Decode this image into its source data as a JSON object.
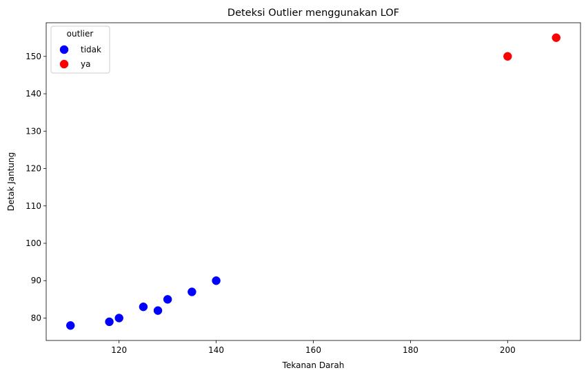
{
  "chart_data": {
    "type": "scatter",
    "title": "Deteksi Outlier menggunakan LOF",
    "xlabel": "Tekanan Darah",
    "ylabel": "Detak Jantung",
    "xlim": [
      105,
      215
    ],
    "ylim": [
      74,
      159
    ],
    "x_ticks": [
      120,
      140,
      160,
      180,
      200
    ],
    "y_ticks": [
      80,
      90,
      100,
      110,
      120,
      130,
      140,
      150
    ],
    "grid": false,
    "legend": {
      "title": "outlier",
      "position": "top-left",
      "entries": [
        {
          "label": "tidak",
          "color": "#0000ff"
        },
        {
          "label": "ya",
          "color": "#ff0000"
        }
      ]
    },
    "series": [
      {
        "name": "tidak",
        "color": "#0000ff",
        "points": [
          {
            "x": 110,
            "y": 78
          },
          {
            "x": 118,
            "y": 79
          },
          {
            "x": 120,
            "y": 80
          },
          {
            "x": 125,
            "y": 83
          },
          {
            "x": 128,
            "y": 82
          },
          {
            "x": 130,
            "y": 85
          },
          {
            "x": 135,
            "y": 87
          },
          {
            "x": 140,
            "y": 90
          }
        ]
      },
      {
        "name": "ya",
        "color": "#ff0000",
        "points": [
          {
            "x": 200,
            "y": 150
          },
          {
            "x": 210,
            "y": 155
          }
        ]
      }
    ]
  }
}
